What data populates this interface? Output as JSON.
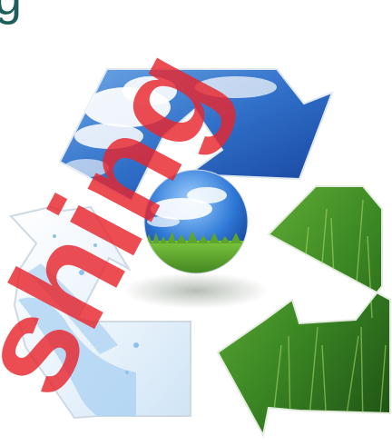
{
  "image": {
    "subject": "recycling-symbol-three-arrows",
    "arrows": [
      {
        "name": "sky-arrow",
        "texture": "blue-sky-with-clouds"
      },
      {
        "name": "grass-arrow",
        "texture": "green-grass"
      },
      {
        "name": "water-arrow",
        "texture": "splashing-water"
      }
    ],
    "center_object": "earth-globe-sky-and-grass",
    "colors": {
      "sky_dark": "#1a4fa6",
      "sky_light": "#5f9ee0",
      "cloud": "#ffffff",
      "grass_dark": "#1d4f14",
      "grass_light": "#7fc03a",
      "water": "#b9d9f5",
      "watermark": "#e8262d"
    }
  },
  "watermark": {
    "text": "shing"
  },
  "corner_text": {
    "text": "g"
  }
}
